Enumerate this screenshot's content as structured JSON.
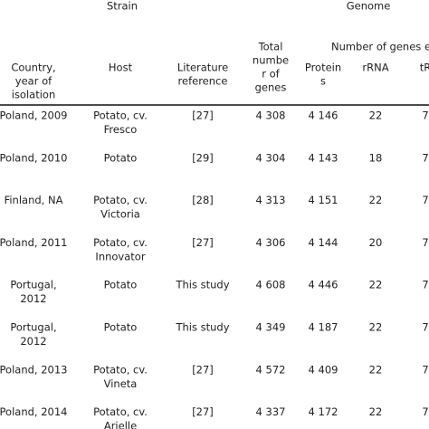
{
  "table": {
    "groups": [
      {
        "label": "Strain"
      },
      {
        "label": "Genome"
      },
      {
        "label": "Number of genes e"
      }
    ],
    "columns": [
      [
        "Country,",
        "year of",
        "isolation"
      ],
      [
        "Host"
      ],
      [
        "Literature",
        "reference"
      ],
      [
        "Total",
        "numbe",
        "r of",
        "genes"
      ],
      [
        "Protein",
        "s"
      ],
      [
        "rRNA"
      ],
      [
        "tR"
      ]
    ],
    "rows": [
      [
        [
          "Poland, 2009"
        ],
        [
          "Potato, cv.",
          "Fresco"
        ],
        [
          "[27]"
        ],
        [
          "4 308"
        ],
        [
          "4 146"
        ],
        [
          "22"
        ],
        [
          "7"
        ]
      ],
      [
        [
          "Poland, 2010"
        ],
        [
          "Potato"
        ],
        [
          "[29]"
        ],
        [
          "4 304"
        ],
        [
          "4 143"
        ],
        [
          "18"
        ],
        [
          "7"
        ]
      ],
      [
        [
          "Finland, NA"
        ],
        [
          "Potato, cv.",
          "Victoria"
        ],
        [
          "[28]"
        ],
        [
          "4 313"
        ],
        [
          "4 151"
        ],
        [
          "22"
        ],
        [
          "7"
        ]
      ],
      [
        [
          "Poland, 2011"
        ],
        [
          "Potato, cv.",
          "Innovator"
        ],
        [
          "[27]"
        ],
        [
          "4 306"
        ],
        [
          "4 144"
        ],
        [
          "20"
        ],
        [
          "7"
        ]
      ],
      [
        [
          "Portugal,",
          "2012"
        ],
        [
          "Potato"
        ],
        [
          "This study"
        ],
        [
          "4 608"
        ],
        [
          "4 446"
        ],
        [
          "22"
        ],
        [
          "7"
        ]
      ],
      [
        [
          "Portugal,",
          "2012"
        ],
        [
          "Potato"
        ],
        [
          "This study"
        ],
        [
          "4 349"
        ],
        [
          "4 187"
        ],
        [
          "22"
        ],
        [
          "7"
        ]
      ],
      [
        [
          "Poland, 2013"
        ],
        [
          "Potato, cv.",
          "Vineta"
        ],
        [
          "[27]"
        ],
        [
          "4 572"
        ],
        [
          "4 409"
        ],
        [
          "22"
        ],
        [
          "7"
        ]
      ],
      [
        [
          "Poland, 2014"
        ],
        [
          "Potato, cv.",
          "Arielle"
        ],
        [
          "[27]"
        ],
        [
          "4 337"
        ],
        [
          "4 172"
        ],
        [
          "22"
        ],
        [
          "7"
        ]
      ]
    ]
  }
}
